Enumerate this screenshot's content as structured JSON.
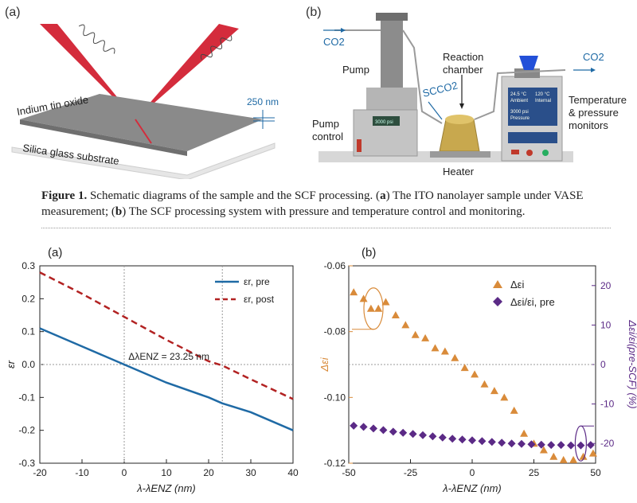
{
  "figure1": {
    "panel_a_label": "(a)",
    "panel_b_label": "(b)",
    "panel_a": {
      "ito_label": "Indium tin oxide",
      "substrate_label": "Silica glass substrate",
      "thickness_label": "250 nm"
    },
    "panel_b": {
      "co2_in": "CO2",
      "co2_out": "CO2",
      "pump_label": "Pump",
      "pump_control_label_1": "Pump",
      "pump_control_label_2": "control",
      "reaction_label_1": "Reaction",
      "reaction_label_2": "chamber",
      "scco2_label": "SCCO2",
      "heater_label": "Heater",
      "temp_label_1": "Temperature",
      "temp_label_2": "& pressure",
      "temp_label_3": "monitors",
      "pump_display": "3000 psi",
      "monitor_1_value": "24.5 °C",
      "monitor_1_label": "Ambient",
      "monitor_2_value": "120 °C",
      "monitor_2_label": "Internal",
      "monitor_3_value": "3000 psi",
      "monitor_3_label": "Pressure"
    },
    "caption": {
      "lead": "Figure 1.",
      "text_1": "Schematic diagrams of the sample and the SCF processing. (",
      "a": "a",
      "text_2": ") The ITO nanolayer sample under VASE measurement; (",
      "b": "b",
      "text_3": ") The SCF processing system with pressure and temperature control and monitoring."
    }
  },
  "chart_data": [
    {
      "type": "line",
      "panel_label": "(a)",
      "xlabel": "λ-λENZ (nm)",
      "ylabel": "εr",
      "xlim": [
        -20,
        40
      ],
      "ylim": [
        -0.3,
        0.3
      ],
      "xticks": [
        -20,
        -10,
        0,
        10,
        20,
        30,
        40
      ],
      "yticks": [
        -0.3,
        -0.2,
        -0.1,
        0.0,
        0.1,
        0.2,
        0.3
      ],
      "x": [
        -20,
        -10,
        0,
        10,
        20,
        23.25,
        30,
        40
      ],
      "series": [
        {
          "name": "εr, pre",
          "color": "#1f6aa5",
          "dash": false,
          "values": [
            0.11,
            0.055,
            0.0,
            -0.055,
            -0.1,
            -0.118,
            -0.145,
            -0.2
          ]
        },
        {
          "name": "εr, post",
          "color": "#b22222",
          "dash": true,
          "values": [
            0.28,
            0.215,
            0.145,
            0.075,
            0.01,
            -0.003,
            -0.045,
            -0.105
          ]
        }
      ],
      "vlines": [
        0,
        23.25
      ],
      "annotation": "ΔλENZ = 23.25 nm"
    },
    {
      "type": "scatter",
      "panel_label": "(b)",
      "xlabel": "λ-λENZ (nm)",
      "ylabel_left": "Δεi",
      "ylabel_right": "Δεi/εi(pre-SCF) (%)",
      "xlim": [
        -50,
        50
      ],
      "ylim_left": [
        -0.12,
        -0.06
      ],
      "ylim_right": [
        -25,
        25
      ],
      "xticks": [
        -50,
        -25,
        0,
        25,
        50
      ],
      "yticks_left": [
        -0.12,
        -0.1,
        -0.08,
        -0.06
      ],
      "yticks_right": [
        -20,
        -10,
        0,
        10,
        20
      ],
      "series": [
        {
          "name": "Δεi",
          "axis": "left",
          "marker": "triangle",
          "color": "#d98b3a",
          "x": [
            -48,
            -44,
            -41,
            -38,
            -35,
            -31,
            -27,
            -23,
            -19,
            -15,
            -11,
            -7,
            -3,
            1,
            5,
            9,
            13,
            17,
            21,
            25,
            29,
            33,
            37,
            41,
            45,
            49
          ],
          "y": [
            -0.068,
            -0.07,
            -0.073,
            -0.073,
            -0.071,
            -0.075,
            -0.078,
            -0.081,
            -0.082,
            -0.085,
            -0.086,
            -0.088,
            -0.091,
            -0.093,
            -0.096,
            -0.098,
            -0.1,
            -0.104,
            -0.111,
            -0.114,
            -0.116,
            -0.118,
            -0.119,
            -0.119,
            -0.118,
            -0.117
          ]
        },
        {
          "name": "Δεi/εi, pre",
          "axis": "right",
          "marker": "diamond",
          "color": "#5b2a86",
          "x": [
            -48,
            -44,
            -40,
            -36,
            -32,
            -28,
            -24,
            -20,
            -16,
            -12,
            -8,
            -4,
            0,
            4,
            8,
            12,
            16,
            20,
            24,
            28,
            32,
            36,
            40,
            44,
            48
          ],
          "y": [
            -15.5,
            -15.8,
            -16.2,
            -16.6,
            -17.0,
            -17.3,
            -17.6,
            -17.9,
            -18.2,
            -18.5,
            -18.8,
            -19.0,
            -19.2,
            -19.4,
            -19.6,
            -19.8,
            -20.0,
            -20.1,
            -20.2,
            -20.3,
            -20.4,
            -20.4,
            -20.5,
            -20.5,
            -20.4
          ]
        }
      ],
      "hline_left": -0.09
    }
  ]
}
